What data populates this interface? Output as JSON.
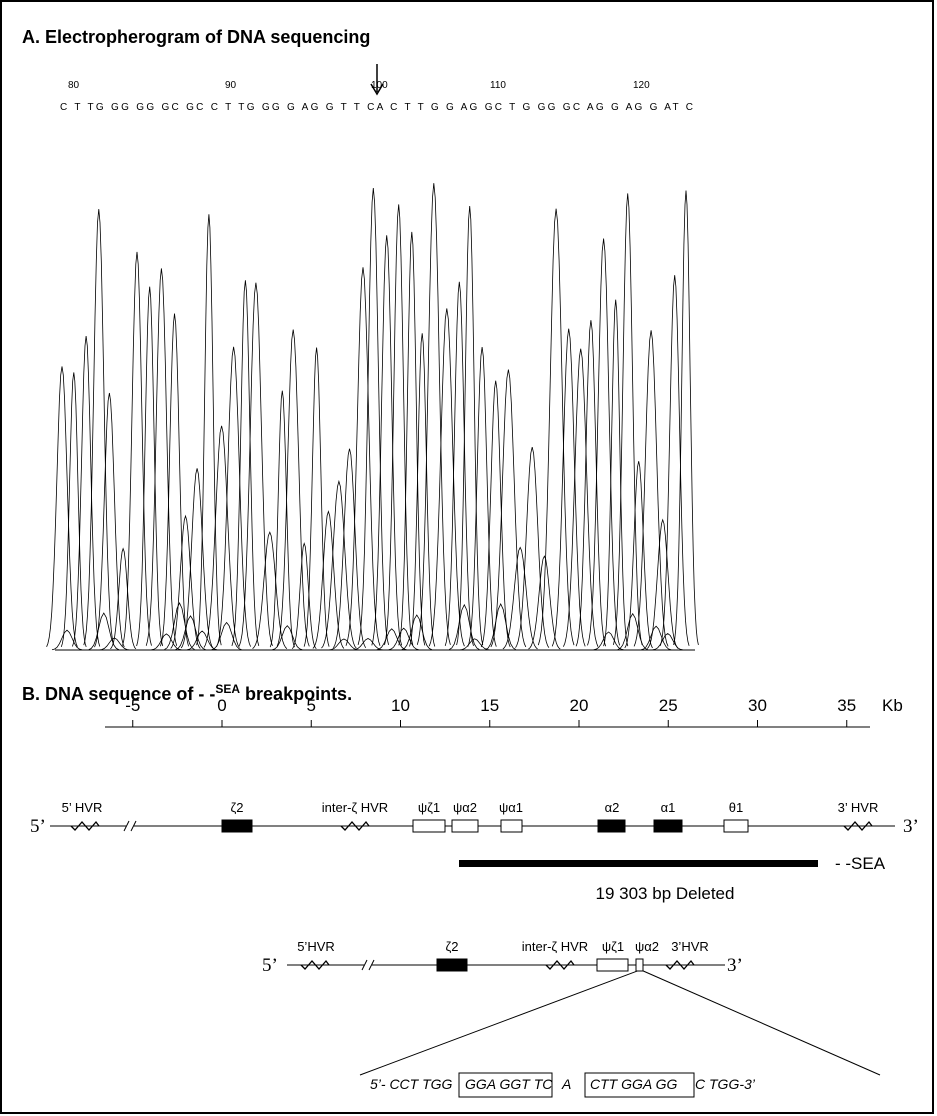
{
  "panel_a": {
    "title": "A. Electropherogram of DNA sequencing",
    "positions": [
      80,
      90,
      100,
      110,
      120
    ],
    "sequence": "C T TG GG GG GC GC C T TG GG G AG G T T CA C T T G G AG GC T G GG GC AG G AG G AT C"
  },
  "panel_b": {
    "title": "B. DNA sequence of - -",
    "title_superscript": "SEA",
    "title_end": " breakpoints.",
    "scale": {
      "ticks": [
        -5,
        0,
        5,
        10,
        15,
        20,
        25,
        30,
        35
      ],
      "unit": "Kb"
    },
    "map1": {
      "five_prime": "5’",
      "three_prime": "3’",
      "labels": [
        "5’ HVR",
        "ζ2",
        "inter-ζ HVR",
        "ψζ1",
        "ψα2",
        "ψα1",
        "α2",
        "α1",
        "θ1",
        "3’ HVR"
      ]
    },
    "deletion_label": "- -SEA",
    "deleted_text": "19 303 bp Deleted",
    "map2": {
      "five_prime": "5’",
      "three_prime": "3’",
      "labels": [
        "5’HVR",
        "ζ2",
        "inter-ζ HVR",
        "ψζ1",
        "ψα2",
        "3’HVR"
      ]
    },
    "junction": [
      "5’- CCT TGG",
      "GGA GGT TC",
      "A",
      "CTT GGA GG",
      "C TGG-3’"
    ]
  }
}
